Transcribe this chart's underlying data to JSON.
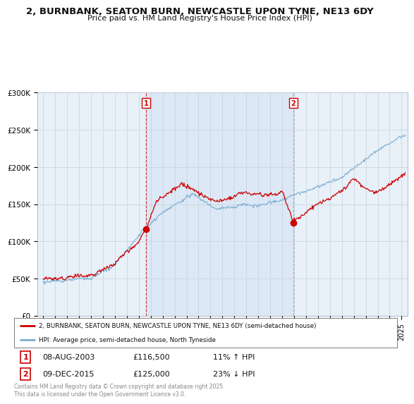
{
  "title_line1": "2, BURNBANK, SEATON BURN, NEWCASTLE UPON TYNE, NE13 6DY",
  "title_line2": "Price paid vs. HM Land Registry's House Price Index (HPI)",
  "ylim": [
    0,
    300000
  ],
  "yticks": [
    0,
    50000,
    100000,
    150000,
    200000,
    250000,
    300000
  ],
  "ytick_labels": [
    "£0",
    "£50K",
    "£100K",
    "£150K",
    "£200K",
    "£250K",
    "£300K"
  ],
  "xmin": 1994.5,
  "xmax": 2025.5,
  "sale1_x": 2003.6,
  "sale1_y": 116500,
  "sale2_x": 2015.93,
  "sale2_y": 125000,
  "line_color_red": "#cc0000",
  "line_color_blue": "#7aadcf",
  "shade_color": "#dce8f5",
  "marker_color": "#cc0000",
  "bg_color": "#e8f0f8",
  "grid_color": "#c8d0dc",
  "legend_line1": "2, BURNBANK, SEATON BURN, NEWCASTLE UPON TYNE, NE13 6DY (semi-detached house)",
  "legend_line2": "HPI: Average price, semi-detached house, North Tyneside",
  "sale1_date": "08-AUG-2003",
  "sale1_price": "£116,500",
  "sale1_hpi": "11% ↑ HPI",
  "sale2_date": "09-DEC-2015",
  "sale2_price": "£125,000",
  "sale2_hpi": "23% ↓ HPI",
  "footer": "Contains HM Land Registry data © Crown copyright and database right 2025.\nThis data is licensed under the Open Government Licence v3.0."
}
